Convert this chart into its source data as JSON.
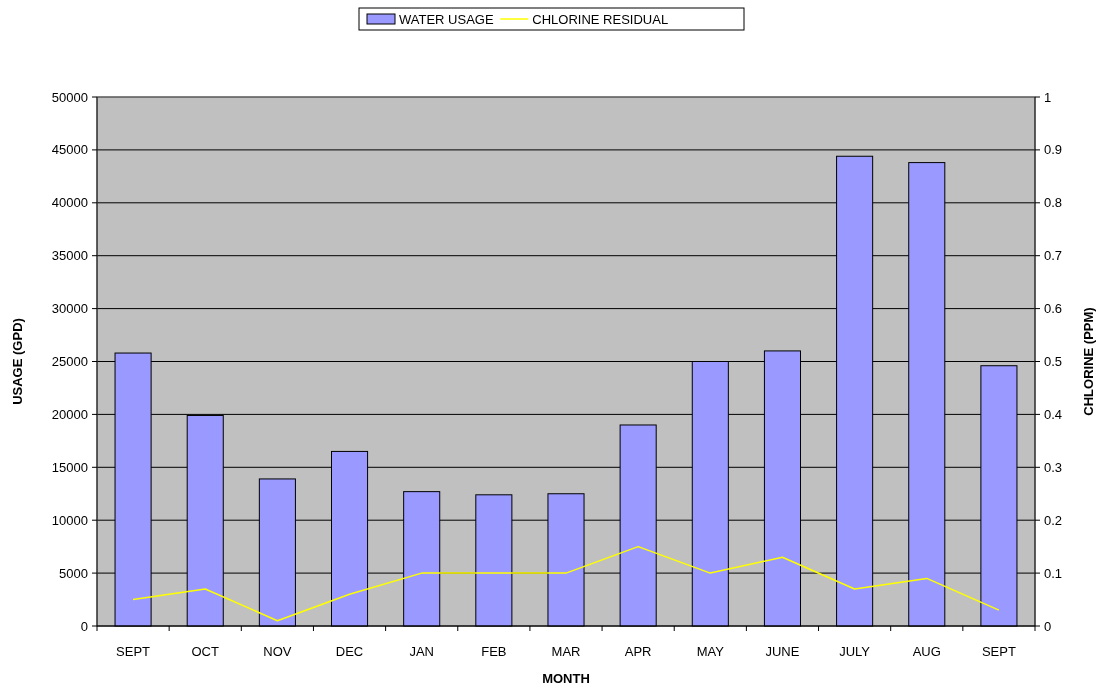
{
  "chart_data": {
    "type": "bar",
    "categories": [
      "SEPT",
      "OCT",
      "NOV",
      "DEC",
      "JAN",
      "FEB",
      "MAR",
      "APR",
      "MAY",
      "JUNE",
      "JULY",
      "AUG",
      "SEPT"
    ],
    "series": [
      {
        "name": "WATER USAGE",
        "color": "#9999ff",
        "values": [
          25800,
          19900,
          13900,
          16500,
          12700,
          12400,
          12500,
          19000,
          25000,
          26000,
          44400,
          43800,
          24600
        ]
      },
      {
        "name": "CHLORINE RESIDUAL",
        "type": "line",
        "axis": "y2",
        "color": "#ffff00",
        "values": [
          0.05,
          0.07,
          0.01,
          0.06,
          0.1,
          0.1,
          0.1,
          0.15,
          0.1,
          0.13,
          0.07,
          0.09,
          0.03
        ]
      }
    ],
    "xlabel": "MONTH",
    "ylabel": "USAGE (GPD)",
    "y2label": "CHLORINE (PPM)",
    "ylim": [
      0,
      50000
    ],
    "yticks": [
      0,
      5000,
      10000,
      15000,
      20000,
      25000,
      30000,
      35000,
      40000,
      45000,
      50000
    ],
    "y2lim": [
      0,
      1
    ],
    "y2ticks": [
      0,
      0.1,
      0.2,
      0.3,
      0.4,
      0.5,
      0.6,
      0.7,
      0.8,
      0.9,
      1
    ],
    "grid": "y",
    "legend": "top"
  }
}
